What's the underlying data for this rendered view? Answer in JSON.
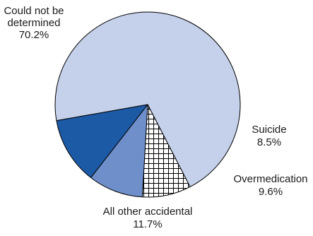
{
  "chart_data": {
    "type": "pie",
    "title": "",
    "slices": [
      {
        "name": "Could not be determined",
        "value": 70.2,
        "label_lines": [
          "Could not be",
          "determined",
          "70.2%"
        ],
        "color": "#c5d0ea",
        "pattern": "none"
      },
      {
        "name": "Suicide",
        "value": 8.5,
        "label_lines": [
          "Suicide",
          "8.5%"
        ],
        "color": "#ffffff",
        "pattern": "crosshatch"
      },
      {
        "name": "Overmedication",
        "value": 9.6,
        "label_lines": [
          "Overmedication",
          "9.6%"
        ],
        "color": "#6f8fcb",
        "pattern": "none"
      },
      {
        "name": "All other accidental",
        "value": 11.7,
        "label_lines": [
          "All other accidental",
          "11.7%"
        ],
        "color": "#1d5aa6",
        "pattern": "none"
      }
    ],
    "outline_color": "#000000"
  }
}
